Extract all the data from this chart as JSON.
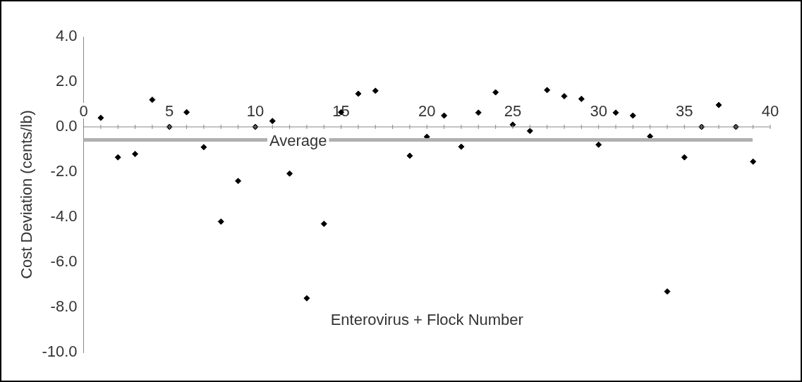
{
  "chart_data": {
    "type": "scatter",
    "xlabel": "Enterovirus + Flock Number",
    "ylabel": "Cost Deviation (cents/lb)",
    "x": [
      1,
      2,
      3,
      4,
      5,
      6,
      7,
      8,
      9,
      10,
      11,
      12,
      13,
      14,
      15,
      16,
      17,
      19,
      20,
      21,
      22,
      23,
      24,
      25,
      26,
      27,
      28,
      29,
      30,
      31,
      32,
      33,
      34,
      35,
      36,
      37,
      38,
      39
    ],
    "series": [
      {
        "color": "#000000",
        "values": [
          0.4,
          -1.35,
          -1.2,
          1.2,
          0,
          0.65,
          -0.9,
          -4.2,
          -2.4,
          0,
          0.26,
          -2.07,
          -7.6,
          -4.3,
          0.65,
          1.47,
          1.6,
          -1.28,
          -0.44,
          0.5,
          -0.88,
          0.63,
          1.53,
          0.1,
          -0.18,
          1.63,
          1.36,
          1.24,
          -0.79,
          0.63,
          0.5,
          -0.42,
          -7.3,
          -1.35,
          0,
          0.97,
          0,
          -1.54
        ]
      }
    ],
    "xlim": [
      0,
      40
    ],
    "xticks": [
      0,
      5,
      10,
      15,
      20,
      25,
      30,
      35,
      40
    ],
    "ylim": [
      -10,
      4
    ],
    "yticks": [
      {
        "value": 4,
        "label": "4.0"
      },
      {
        "value": 2,
        "label": "2.0"
      },
      {
        "value": 0,
        "label": "0.0"
      },
      {
        "value": -2,
        "label": "-2.0"
      },
      {
        "value": -4,
        "label": "-4.0"
      },
      {
        "value": -6,
        "label": "-6.0"
      },
      {
        "value": -8,
        "label": "-8.0"
      },
      {
        "value": -10,
        "label": "-10.0"
      }
    ],
    "ref_lines": [
      {
        "axis": "y",
        "value": -0.58,
        "label": "Average",
        "color": "#b0b0b0"
      }
    ],
    "marker": "diamond",
    "grid": false,
    "legend": false
  }
}
